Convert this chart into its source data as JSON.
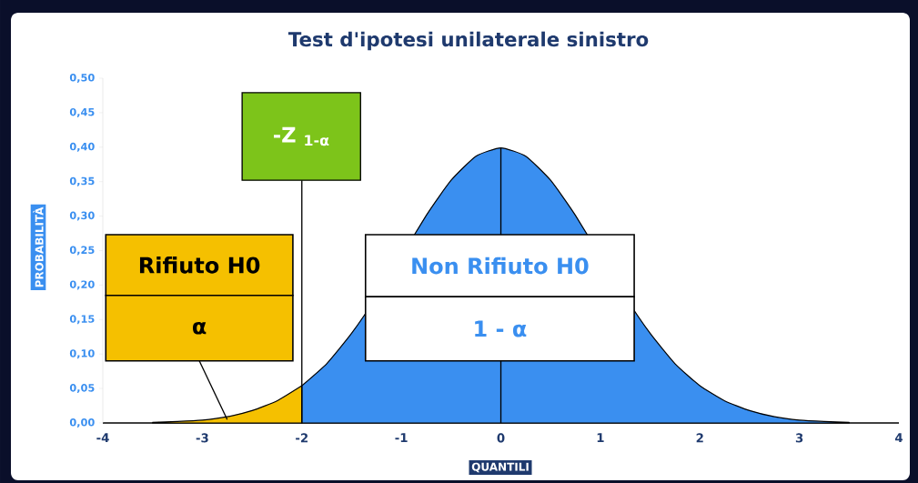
{
  "chart_data": {
    "type": "area",
    "title": "Test d'ipotesi unilaterale sinistro",
    "xlabel": "QUANTILI",
    "ylabel": "PROBABILITÀ",
    "series": [
      {
        "color": "#f5c000",
        "x": [
          -3.5,
          -3.25,
          -3,
          -2.75,
          -2.5,
          -2.25,
          -2
        ],
        "values": [
          0.001,
          0.002,
          0.004,
          0.009,
          0.018,
          0.032,
          0.054
        ]
      },
      {
        "color": "#3a8ff0",
        "x": [
          -2,
          -1.75,
          -1.5,
          -1.25,
          -1,
          -0.75,
          -0.5,
          -0.25,
          0,
          0.25,
          0.5,
          0.75,
          1,
          1.25,
          1.5,
          1.75,
          2,
          2.25,
          2.5,
          2.75,
          3,
          3.25,
          3.5
        ],
        "values": [
          0.054,
          0.086,
          0.13,
          0.183,
          null,
          0.301,
          0.352,
          0.387,
          0.399,
          0.387,
          0.352,
          0.301,
          null,
          0.183,
          0.13,
          0.086,
          0.054,
          0.032,
          0.018,
          0.009,
          0.004,
          0.002,
          0.001
        ]
      }
    ],
    "xlim": [
      -4,
      4
    ],
    "ylim": [
      0,
      0.5
    ],
    "xticks": [
      -4,
      -3,
      -2,
      -1,
      0,
      1,
      2,
      3,
      4
    ],
    "yticks": [
      {
        "value": 0,
        "label": "0,00"
      },
      {
        "value": 0.05,
        "label": "0,05"
      },
      {
        "value": 0.1,
        "label": "0,10"
      },
      {
        "value": 0.15,
        "label": "0,15"
      },
      {
        "value": 0.2,
        "label": "0,20"
      },
      {
        "value": 0.25,
        "label": "0,25"
      },
      {
        "value": 0.3,
        "label": "0,30"
      },
      {
        "value": 0.35,
        "label": "0,35"
      },
      {
        "value": 0.4,
        "label": "0,40"
      },
      {
        "value": 0.45,
        "label": "0,45"
      },
      {
        "value": 0.5,
        "label": "0,50"
      }
    ],
    "ref_lines": [
      {
        "axis": "x",
        "value": -2,
        "label": "-Z $_{1-α}$"
      },
      {
        "axis": "x",
        "value": 0
      }
    ],
    "annotations": [
      "Rifiuto H0",
      {
        "text": "α",
        "x": -2.75,
        "y": 0.005
      },
      "Non Rifiuto H0",
      "1 - α"
    ]
  }
}
